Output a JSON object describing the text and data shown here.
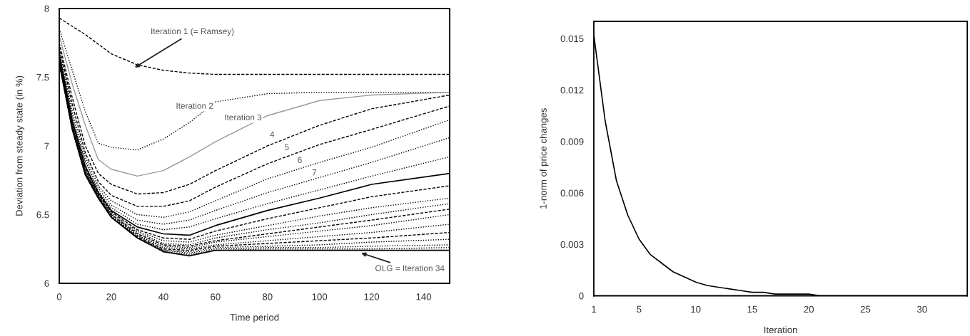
{
  "chart_data": [
    {
      "type": "line",
      "xlabel": "Time period",
      "ylabel": "Deviation from steady state (in %)",
      "x": [
        0,
        5,
        10,
        15,
        20,
        30,
        40,
        50,
        60,
        80,
        100,
        120,
        150
      ],
      "xlim": [
        0,
        150
      ],
      "xticks": [
        0,
        20,
        40,
        60,
        80,
        100,
        120,
        140
      ],
      "ylim": [
        6,
        8
      ],
      "yticks": [
        6,
        6.5,
        7,
        7.5,
        8
      ],
      "series": [
        {
          "color": "#000000",
          "line_style": "dashed",
          "values": [
            7.93,
            7.87,
            7.81,
            7.74,
            7.67,
            7.59,
            7.55,
            7.53,
            7.52,
            7.52,
            7.52,
            7.52,
            7.52
          ]
        },
        {
          "name": "Iteration 2",
          "color": "#000000",
          "line_style": "dotted",
          "values": [
            7.85,
            7.55,
            7.25,
            7.02,
            6.99,
            6.97,
            7.05,
            7.17,
            7.32,
            7.38,
            7.39,
            7.39,
            7.39
          ]
        },
        {
          "name": "Iteration 3",
          "color": "#999999",
          "line_style": "solid",
          "values": [
            7.8,
            7.45,
            7.15,
            6.9,
            6.83,
            6.78,
            6.82,
            6.92,
            7.03,
            7.22,
            7.33,
            7.37,
            7.39
          ]
        },
        {
          "name": "4",
          "color": "#000000",
          "line_style": "dashed",
          "values": [
            7.75,
            7.35,
            7.0,
            6.8,
            6.72,
            6.65,
            6.66,
            6.72,
            6.82,
            7.0,
            7.15,
            7.27,
            7.37
          ]
        },
        {
          "name": "5",
          "color": "#000000",
          "line_style": "dashed",
          "values": [
            7.72,
            7.3,
            6.95,
            6.74,
            6.64,
            6.56,
            6.56,
            6.6,
            6.7,
            6.87,
            7.01,
            7.12,
            7.29
          ]
        },
        {
          "name": "6",
          "color": "#000000",
          "line_style": "dotted",
          "values": [
            7.7,
            7.25,
            6.92,
            6.71,
            6.6,
            6.5,
            6.48,
            6.52,
            6.6,
            6.76,
            6.88,
            6.99,
            7.19
          ]
        },
        {
          "name": "7",
          "color": "#000000",
          "line_style": "dotted",
          "values": [
            7.68,
            7.22,
            6.89,
            6.69,
            6.57,
            6.46,
            6.43,
            6.46,
            6.53,
            6.66,
            6.77,
            6.88,
            7.06
          ]
        },
        {
          "color": "#000000",
          "line_style": "dotted",
          "values": [
            7.67,
            7.2,
            6.87,
            6.67,
            6.55,
            6.43,
            6.39,
            6.41,
            6.47,
            6.58,
            6.68,
            6.78,
            6.92
          ]
        },
        {
          "color": "#000000",
          "line_style": "solid",
          "values": [
            7.66,
            7.18,
            6.85,
            6.66,
            6.53,
            6.41,
            6.36,
            6.35,
            6.42,
            6.53,
            6.62,
            6.72,
            6.8
          ]
        },
        {
          "color": "#000000",
          "line_style": "dashed",
          "values": [
            7.65,
            7.17,
            6.84,
            6.65,
            6.52,
            6.39,
            6.33,
            6.32,
            6.38,
            6.47,
            6.55,
            6.63,
            6.71
          ]
        },
        {
          "color": "#000000",
          "line_style": "dotted",
          "values": [
            7.64,
            7.16,
            6.83,
            6.64,
            6.51,
            6.38,
            6.31,
            6.3,
            6.35,
            6.42,
            6.49,
            6.55,
            6.62
          ]
        },
        {
          "color": "#000000",
          "line_style": "dotted",
          "values": [
            7.63,
            7.15,
            6.82,
            6.64,
            6.5,
            6.37,
            6.29,
            6.28,
            6.33,
            6.39,
            6.44,
            6.5,
            6.58
          ]
        },
        {
          "color": "#000000",
          "line_style": "dashed",
          "values": [
            7.63,
            7.14,
            6.81,
            6.63,
            6.5,
            6.36,
            6.28,
            6.27,
            6.31,
            6.36,
            6.41,
            6.46,
            6.54
          ]
        },
        {
          "color": "#000000",
          "line_style": "dotted",
          "values": [
            7.62,
            7.14,
            6.81,
            6.63,
            6.49,
            6.35,
            6.27,
            6.26,
            6.3,
            6.34,
            6.38,
            6.42,
            6.5
          ]
        },
        {
          "color": "#000000",
          "line_style": "dotted",
          "values": [
            7.62,
            7.13,
            6.8,
            6.63,
            6.49,
            6.35,
            6.26,
            6.25,
            6.28,
            6.31,
            6.34,
            6.37,
            6.43
          ]
        },
        {
          "color": "#000000",
          "line_style": "dashed",
          "values": [
            7.61,
            7.13,
            6.8,
            6.62,
            6.48,
            6.34,
            6.25,
            6.24,
            6.27,
            6.29,
            6.31,
            6.33,
            6.37
          ]
        },
        {
          "color": "#000000",
          "line_style": "dotted",
          "values": [
            7.61,
            7.12,
            6.79,
            6.62,
            6.48,
            6.34,
            6.24,
            6.23,
            6.26,
            6.27,
            6.28,
            6.3,
            6.32
          ]
        },
        {
          "color": "#000000",
          "line_style": "dotted",
          "values": [
            7.6,
            7.12,
            6.79,
            6.62,
            6.48,
            6.33,
            6.24,
            6.22,
            6.25,
            6.26,
            6.26,
            6.27,
            6.28
          ]
        },
        {
          "color": "#000000",
          "line_style": "dotted",
          "values": [
            7.6,
            7.12,
            6.79,
            6.62,
            6.48,
            6.33,
            6.23,
            6.21,
            6.24,
            6.25,
            6.25,
            6.25,
            6.26
          ]
        },
        {
          "color": "#000000",
          "line_style": "solid",
          "values": [
            7.6,
            7.12,
            6.79,
            6.62,
            6.48,
            6.33,
            6.23,
            6.2,
            6.24,
            6.24,
            6.24,
            6.24,
            6.24
          ]
        }
      ],
      "annotations": [
        {
          "text": "Iteration 1 (= Ramsey)",
          "x": 29,
          "y": 7.57
        },
        {
          "text": "OLG = Iteration 34",
          "x": 116,
          "y": 6.22
        }
      ]
    },
    {
      "type": "line",
      "xlabel": "Iteration",
      "ylabel": "1-norm of price changes",
      "x": [
        1,
        2,
        3,
        4,
        5,
        6,
        7,
        8,
        9,
        10,
        11,
        12,
        13,
        14,
        15,
        16,
        17,
        18,
        19,
        20,
        21,
        22,
        23,
        24,
        25,
        26,
        27,
        28,
        29,
        30,
        31,
        32,
        33,
        34
      ],
      "xlim": [
        1,
        34
      ],
      "xticks": [
        1,
        5,
        10,
        15,
        20,
        25,
        30
      ],
      "ylim": [
        0,
        0.016
      ],
      "yticks": [
        0,
        0.003,
        0.006,
        0.009,
        0.012,
        0.015
      ],
      "series": [
        {
          "color": "#000000",
          "line_style": "solid",
          "values": [
            0.0152,
            0.0102,
            0.0067,
            0.0047,
            0.0033,
            0.0024,
            0.0019,
            0.0014,
            0.0011,
            0.0008,
            0.0006,
            0.0005,
            0.0004,
            0.0003,
            0.0002,
            0.0002,
            0.0001,
            0.0001,
            0.0001,
            0.0001,
            0,
            0,
            0,
            0,
            0,
            0,
            0,
            0,
            0,
            0,
            0,
            0,
            0,
            0
          ]
        }
      ]
    }
  ]
}
